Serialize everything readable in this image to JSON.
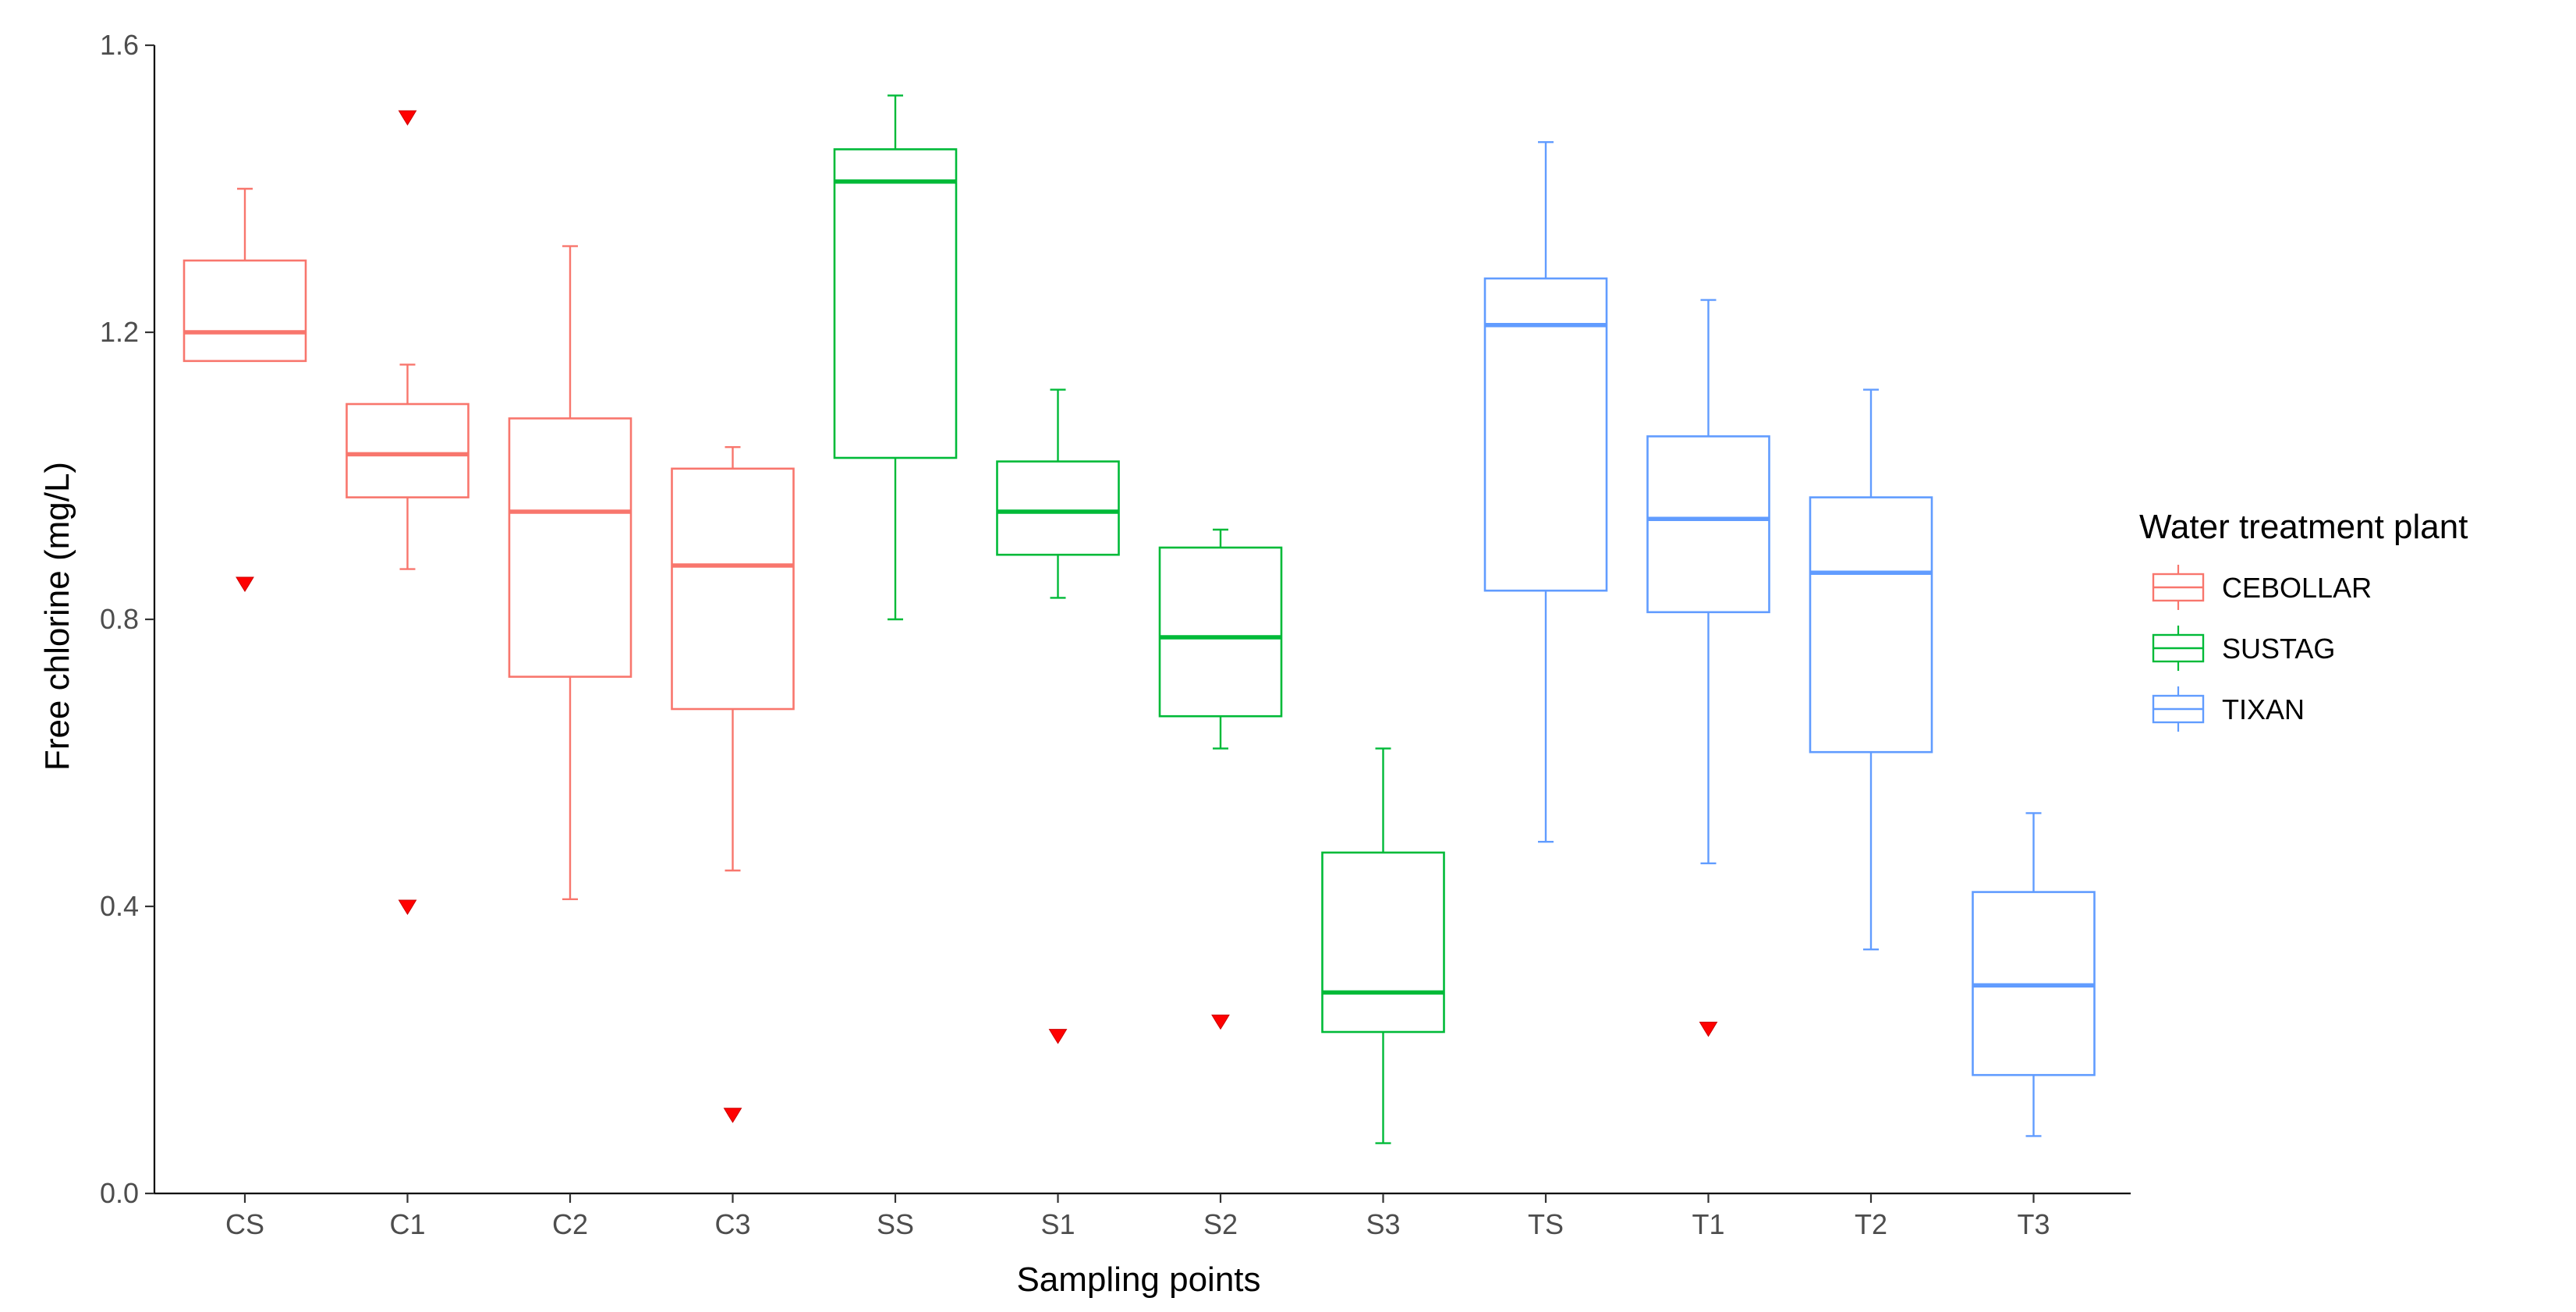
{
  "chart_data": {
    "type": "boxplot",
    "title": "",
    "xlabel": "Sampling points",
    "ylabel": "Free chlorine (mg/L)",
    "ylim": [
      0,
      1.6
    ],
    "yticks": [
      "0.0",
      "0.4",
      "0.8",
      "1.2",
      "1.6"
    ],
    "ytick_values": [
      0,
      0.4,
      0.8,
      1.2,
      1.6
    ],
    "grid": false,
    "legend": {
      "title": "Water treatment plant",
      "position": "right",
      "entries": [
        {
          "label": "CEBOLLAR",
          "color": "#F8766D"
        },
        {
          "label": "SUSTAG",
          "color": "#00BA38"
        },
        {
          "label": "TIXAN",
          "color": "#619CFF"
        }
      ]
    },
    "outlier_color": "#FF0000",
    "boxes": [
      {
        "category": "CS",
        "group": "CEBOLLAR",
        "whisker_low": 1.16,
        "q1": 1.16,
        "median": 1.2,
        "q3": 1.3,
        "whisker_high": 1.4,
        "outliers": [
          0.85
        ]
      },
      {
        "category": "C1",
        "group": "CEBOLLAR",
        "whisker_low": 0.87,
        "q1": 0.97,
        "median": 1.03,
        "q3": 1.1,
        "whisker_high": 1.155,
        "outliers": [
          1.5,
          0.4
        ]
      },
      {
        "category": "C2",
        "group": "CEBOLLAR",
        "whisker_low": 0.41,
        "q1": 0.72,
        "median": 0.95,
        "q3": 1.08,
        "whisker_high": 1.32,
        "outliers": []
      },
      {
        "category": "C3",
        "group": "CEBOLLAR",
        "whisker_low": 0.45,
        "q1": 0.675,
        "median": 0.875,
        "q3": 1.01,
        "whisker_high": 1.04,
        "outliers": [
          0.11
        ]
      },
      {
        "category": "SS",
        "group": "SUSTAG",
        "whisker_low": 0.8,
        "q1": 1.025,
        "median": 1.41,
        "q3": 1.455,
        "whisker_high": 1.53,
        "outliers": []
      },
      {
        "category": "S1",
        "group": "SUSTAG",
        "whisker_low": 0.83,
        "q1": 0.89,
        "median": 0.95,
        "q3": 1.02,
        "whisker_high": 1.12,
        "outliers": [
          0.22
        ]
      },
      {
        "category": "S2",
        "group": "SUSTAG",
        "whisker_low": 0.62,
        "q1": 0.665,
        "median": 0.775,
        "q3": 0.9,
        "whisker_high": 0.925,
        "outliers": [
          0.24
        ]
      },
      {
        "category": "S3",
        "group": "SUSTAG",
        "whisker_low": 0.07,
        "q1": 0.225,
        "median": 0.28,
        "q3": 0.475,
        "whisker_high": 0.62,
        "outliers": []
      },
      {
        "category": "TS",
        "group": "TIXAN",
        "whisker_low": 0.49,
        "q1": 0.84,
        "median": 1.21,
        "q3": 1.275,
        "whisker_high": 1.465,
        "outliers": []
      },
      {
        "category": "T1",
        "group": "TIXAN",
        "whisker_low": 0.46,
        "q1": 0.81,
        "median": 0.94,
        "q3": 1.055,
        "whisker_high": 1.245,
        "outliers": [
          0.23
        ]
      },
      {
        "category": "T2",
        "group": "TIXAN",
        "whisker_low": 0.34,
        "q1": 0.615,
        "median": 0.865,
        "q3": 0.97,
        "whisker_high": 1.12,
        "outliers": []
      },
      {
        "category": "T3",
        "group": "TIXAN",
        "whisker_low": 0.08,
        "q1": 0.165,
        "median": 0.29,
        "q3": 0.42,
        "whisker_high": 0.53,
        "outliers": []
      }
    ]
  }
}
